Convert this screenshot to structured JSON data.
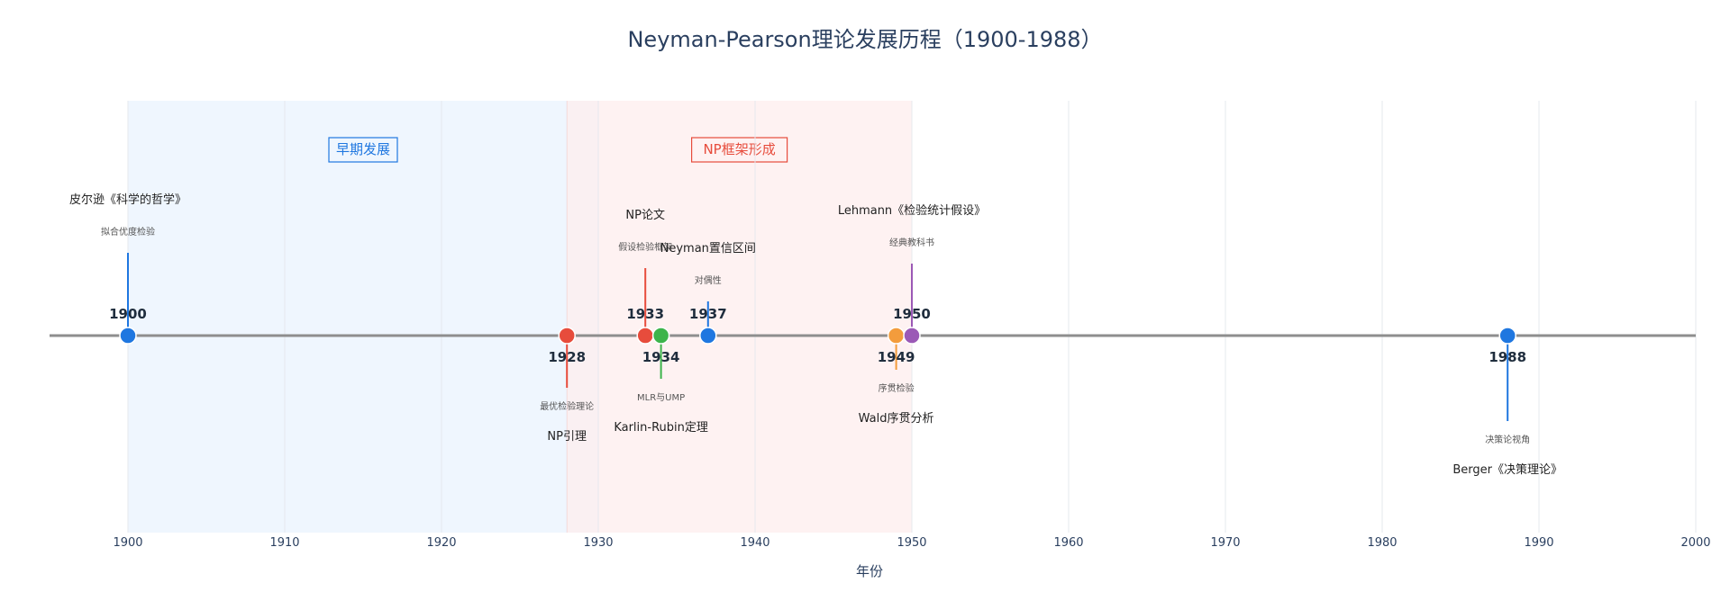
{
  "chart_data": {
    "type": "scatter",
    "title": "Neyman-Pearson理论发展历程（1900-1988）",
    "xlabel": "年份",
    "xlim": [
      1895,
      2000
    ],
    "xticks": [
      1900,
      1910,
      1920,
      1930,
      1940,
      1950,
      1960,
      1970,
      1980,
      1990,
      2000
    ],
    "grid": true,
    "eras": [
      {
        "label": "早期发展",
        "start": 1900,
        "end": 1930,
        "color": "#1f77e0",
        "fill": "#eaf3fd"
      },
      {
        "label": "NP框架形成",
        "start": 1928,
        "end": 1950,
        "color": "#e74c3c",
        "fill": "#fdeeee"
      }
    ],
    "events": [
      {
        "year": 1900,
        "year_label": "1900",
        "title": "皮尔逊《科学的哲学》",
        "subtitle": "拟合优度检验",
        "side": "up",
        "level": 0.72,
        "color": "#1f77e0"
      },
      {
        "year": 1928,
        "year_label": "1928",
        "title": "NP引理",
        "subtitle": "最优检验理论",
        "side": "down",
        "level": 0.38,
        "color": "#e74c3c"
      },
      {
        "year": 1933,
        "year_label": "1933",
        "title": "NP论文",
        "subtitle": "假设检验框架",
        "side": "up",
        "level": 0.55,
        "color": "#e74c3c"
      },
      {
        "year": 1934,
        "year_label": "1934",
        "title": "Karlin-Rubin定理",
        "subtitle": "MLR与UMP",
        "side": "down",
        "level": 0.28,
        "color": "#3cb44b"
      },
      {
        "year": 1937,
        "year_label": "1937",
        "title": "Neyman置信区间",
        "subtitle": "对偶性",
        "side": "up",
        "level": 0.18,
        "color": "#1f77e0"
      },
      {
        "year": 1949,
        "year_label": "1949",
        "title": "Wald序贯分析",
        "subtitle": "序贯检验",
        "side": "down",
        "level": 0.18,
        "color": "#f39c3c"
      },
      {
        "year": 1950,
        "year_label": "1950",
        "title": "Lehmann《检验统计假设》",
        "subtitle": "经典教科书",
        "side": "up",
        "level": 0.6,
        "color": "#9b59b6"
      },
      {
        "year": 1988,
        "year_label": "1988",
        "title": "Berger《决策理论》",
        "subtitle": "决策论视角",
        "side": "down",
        "level": 0.75,
        "color": "#1f77e0"
      }
    ]
  }
}
